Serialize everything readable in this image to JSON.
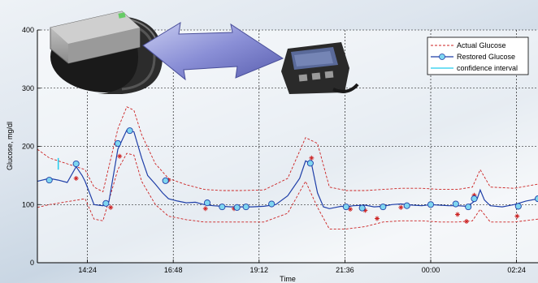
{
  "chart_data": {
    "type": "line",
    "ylabel": "Glucose, mg/dl",
    "xlabel": "Time",
    "ylim": [
      0,
      400
    ],
    "xlim": [
      780,
      1620
    ],
    "yticks": [
      0,
      100,
      200,
      300,
      400
    ],
    "xticks": [
      864,
      1008,
      1152,
      1296,
      1440,
      1584
    ],
    "xtick_labels": [
      "14:24",
      "16:48",
      "19:12",
      "21:36",
      "00:00",
      "02:24"
    ],
    "grid": true,
    "legend_position": "top-right",
    "legend": [
      {
        "label": "Actual Glucose",
        "style": "dashed",
        "color": "#cc2222"
      },
      {
        "label": "Restored Glucose",
        "style": "line-circle",
        "color": "#1f3fa8"
      },
      {
        "label": "confidence interval",
        "style": "line",
        "color": "#22ccee"
      }
    ],
    "series": [
      {
        "name": "Restored Glucose",
        "color": "#1f3fa8",
        "x": [
          780,
          800,
          815,
          830,
          845,
          855,
          860,
          875,
          890,
          900,
          915,
          930,
          942,
          955,
          965,
          978,
          990,
          1000,
          1015,
          1030,
          1045,
          1060,
          1075,
          1090,
          1105,
          1120,
          1140,
          1160,
          1180,
          1200,
          1220,
          1230,
          1240,
          1250,
          1260,
          1270,
          1280,
          1290,
          1298,
          1310,
          1330,
          1345,
          1360,
          1375,
          1390,
          1410,
          1425,
          1440,
          1455,
          1470,
          1485,
          1500,
          1510,
          1518,
          1523,
          1530,
          1540,
          1560,
          1580,
          1600,
          1620
        ],
        "y": [
          140,
          145,
          142,
          138,
          165,
          150,
          140,
          100,
          98,
          105,
          195,
          228,
          225,
          180,
          150,
          135,
          120,
          110,
          106,
          103,
          104,
          100,
          98,
          97,
          96,
          96,
          96,
          97,
          100,
          115,
          145,
          175,
          170,
          120,
          96,
          93,
          95,
          97,
          96,
          98,
          99,
          96,
          97,
          100,
          101,
          99,
          98,
          100,
          99,
          98,
          98,
          97,
          103,
          110,
          125,
          108,
          98,
          96,
          100,
          106,
          110
        ]
      }
    ],
    "confidence_band": {
      "x": [
        780,
        800,
        830,
        860,
        875,
        890,
        915,
        930,
        942,
        955,
        978,
        1000,
        1030,
        1060,
        1090,
        1120,
        1160,
        1200,
        1230,
        1250,
        1270,
        1298,
        1330,
        1360,
        1390,
        1425,
        1455,
        1485,
        1510,
        1523,
        1540,
        1580,
        1620
      ],
      "upper": [
        195,
        180,
        170,
        160,
        130,
        122,
        230,
        268,
        262,
        220,
        170,
        145,
        134,
        126,
        124,
        124,
        125,
        145,
        215,
        205,
        130,
        124,
        124,
        126,
        128,
        128,
        126,
        126,
        130,
        160,
        130,
        128,
        135
      ],
      "lower": [
        95,
        100,
        105,
        110,
        75,
        72,
        160,
        188,
        185,
        140,
        100,
        80,
        74,
        70,
        70,
        70,
        70,
        85,
        140,
        95,
        58,
        58,
        62,
        70,
        72,
        72,
        70,
        70,
        72,
        92,
        70,
        70,
        75
      ]
    },
    "restored_markers": {
      "x": [
        800,
        845,
        895,
        915,
        935,
        995,
        1065,
        1090,
        1115,
        1130,
        1173,
        1238,
        1298,
        1325,
        1360,
        1400,
        1440,
        1482,
        1503,
        1513,
        1587,
        1620
      ],
      "y": [
        142,
        170,
        102,
        205,
        227,
        141,
        103,
        96,
        95,
        96,
        101,
        171,
        96,
        94,
        96,
        98,
        100,
        101,
        96,
        110,
        97,
        110
      ]
    },
    "actual_markers": {
      "x": [
        845,
        903,
        918,
        1000,
        1062,
        1110,
        1240,
        1305,
        1330,
        1350,
        1390,
        1485,
        1500,
        1513,
        1585
      ],
      "y": [
        145,
        95,
        183,
        142,
        93,
        93,
        180,
        92,
        90,
        76,
        95,
        83,
        71,
        116,
        80
      ]
    }
  }
}
